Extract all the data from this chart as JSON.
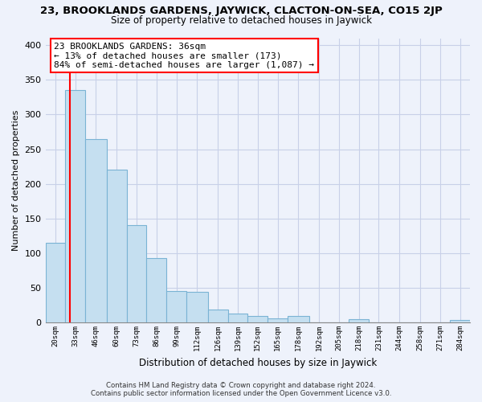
{
  "title": "23, BROOKLANDS GARDENS, JAYWICK, CLACTON-ON-SEA, CO15 2JP",
  "subtitle": "Size of property relative to detached houses in Jaywick",
  "xlabel": "Distribution of detached houses by size in Jaywick",
  "ylabel": "Number of detached properties",
  "bar_labels": [
    "20sqm",
    "33sqm",
    "46sqm",
    "60sqm",
    "73sqm",
    "86sqm",
    "99sqm",
    "112sqm",
    "126sqm",
    "139sqm",
    "152sqm",
    "165sqm",
    "178sqm",
    "192sqm",
    "205sqm",
    "218sqm",
    "231sqm",
    "244sqm",
    "258sqm",
    "271sqm",
    "284sqm"
  ],
  "bar_values": [
    115,
    335,
    265,
    220,
    140,
    93,
    45,
    44,
    19,
    13,
    10,
    6,
    9,
    0,
    0,
    5,
    0,
    0,
    0,
    0,
    4
  ],
  "bar_color": "#c5dff0",
  "bar_edge_color": "#7ab3d4",
  "redline_x": 36,
  "bin_edges": [
    20,
    33,
    46,
    60,
    73,
    86,
    99,
    112,
    126,
    139,
    152,
    165,
    178,
    192,
    205,
    218,
    231,
    244,
    258,
    271,
    284,
    297
  ],
  "annotation_line1": "23 BROOKLANDS GARDENS: 36sqm",
  "annotation_line2": "← 13% of detached houses are smaller (173)",
  "annotation_line3": "84% of semi-detached houses are larger (1,087) →",
  "ylim": [
    0,
    410
  ],
  "yticks": [
    0,
    50,
    100,
    150,
    200,
    250,
    300,
    350,
    400
  ],
  "footer_line1": "Contains HM Land Registry data © Crown copyright and database right 2024.",
  "footer_line2": "Contains public sector information licensed under the Open Government Licence v3.0.",
  "bg_color": "#eef2fb",
  "plot_bg_color": "#eef2fb",
  "grid_color": "#c8d0e8",
  "title_fontsize": 9.5,
  "subtitle_fontsize": 8.5
}
